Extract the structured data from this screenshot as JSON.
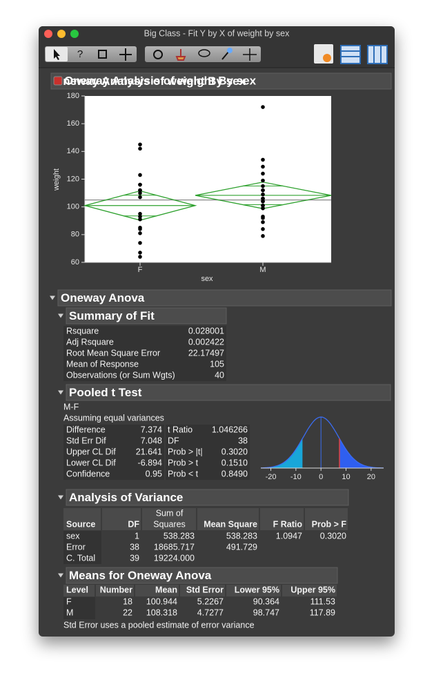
{
  "window": {
    "title": "Big Class - Fit Y by X of weight by sex"
  },
  "report": {
    "title": "Oneway Analysis of weight By sex"
  },
  "chart_data": {
    "type": "dot",
    "x_label": "sex",
    "y_label": "weight",
    "categories": [
      "F",
      "M"
    ],
    "values": [
      [
        145,
        142,
        123,
        116,
        112,
        107,
        95,
        93,
        91,
        85,
        84,
        81,
        74,
        67,
        64,
        112,
        116,
        110
      ],
      [
        172,
        134,
        129,
        124,
        119,
        115,
        112,
        109,
        106,
        104,
        101,
        99,
        92,
        89,
        84,
        79,
        106,
        104,
        101,
        99,
        112,
        93
      ]
    ],
    "color": "#000000",
    "diamond_color": "#2ca02c",
    "ylim": [
      60,
      180
    ],
    "yticks": [
      60,
      80,
      100,
      120,
      140,
      160,
      180
    ]
  },
  "oneway_anova": {
    "title": "Oneway Anova"
  },
  "summary_of_fit": {
    "title": "Summary of Fit",
    "rows": [
      [
        "Rsquare",
        "0.028001"
      ],
      [
        "Adj Rsquare",
        "0.002422"
      ],
      [
        "Root Mean Square Error",
        "22.17497"
      ],
      [
        "Mean of Response",
        "105"
      ],
      [
        "Observations (or Sum Wgts)",
        "40"
      ]
    ]
  },
  "pooled_t_test": {
    "title": "Pooled t Test",
    "contrast": "M-F",
    "assumption": "Assuming equal variances",
    "rows": [
      [
        "Difference",
        "7.374",
        "t Ratio",
        "1.046266"
      ],
      [
        "Std Err Dif",
        "7.048",
        "DF",
        "38"
      ],
      [
        "Upper CL Dif",
        "21.641",
        "Prob > |t|",
        "0.3020"
      ],
      [
        "Lower CL Dif",
        "-6.894",
        "Prob > t",
        "0.1510"
      ],
      [
        "Confidence",
        "0.95",
        "Prob < t",
        "0.8490"
      ]
    ],
    "plot": {
      "xlim": [
        -24,
        25
      ],
      "xticks": [
        -20,
        -10,
        0,
        10,
        20
      ],
      "left_color": "#19a6d9",
      "right_color": "#2f5ff0"
    }
  },
  "analysis_of_variance": {
    "title": "Analysis of Variance",
    "header": [
      "Source",
      "DF",
      [
        "Sum of",
        "Squares"
      ],
      "Mean Square",
      "F Ratio",
      "Prob > F"
    ],
    "rows": [
      [
        "sex",
        "1",
        "538.283",
        "538.283",
        "1.0947",
        "0.3020"
      ],
      [
        "Error",
        "38",
        "18685.717",
        "491.729"
      ],
      [
        "C. Total",
        "39",
        "19224.000"
      ]
    ]
  },
  "means_for_oneway_anova": {
    "title": "Means for Oneway Anova",
    "header": [
      "Level",
      "Number",
      "Mean",
      "Std Error",
      "Lower 95%",
      "Upper 95%"
    ],
    "rows": [
      [
        "F",
        "18",
        "100.944",
        "5.2267",
        "90.364",
        "111.53"
      ],
      [
        "M",
        "22",
        "108.318",
        "4.7277",
        "98.747",
        "117.89"
      ]
    ],
    "note": "Std Error uses a pooled estimate of error variance"
  }
}
